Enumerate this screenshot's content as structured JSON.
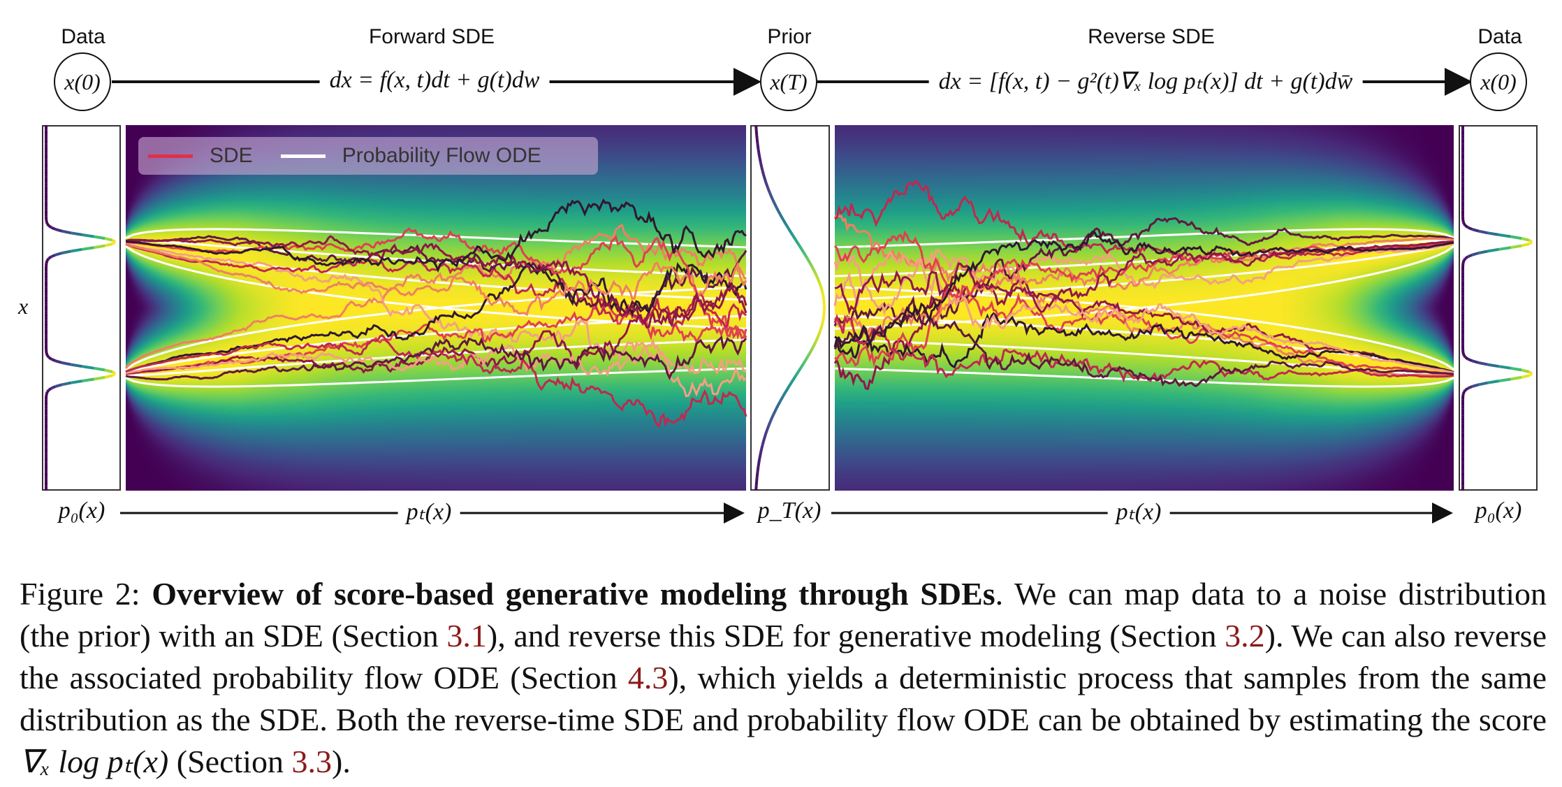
{
  "header": {
    "data_left": "Data",
    "forward_sde": "Forward SDE",
    "prior": "Prior",
    "reverse_sde": "Reverse SDE",
    "data_right": "Data"
  },
  "nodes": {
    "x0_left": "x(0)",
    "xT": "x(T)",
    "x0_right": "x(0)"
  },
  "equations": {
    "forward": "dx = f(x, t)dt + g(t)dw",
    "reverse": "dx = [f(x, t) − g²(t)∇ₓ log pₜ(x)] dt + g(t)dw̄"
  },
  "axis_label": "x",
  "bottom_labels": {
    "p0_left": "p₀(x)",
    "pt_forward": "pₜ(x)",
    "pT": "p_T(x)",
    "pt_reverse": "pₜ(x)",
    "p0_right": "p₀(x)"
  },
  "legend": {
    "sde": "SDE",
    "ode": "Probability Flow ODE",
    "sde_color": "#e0304a",
    "ode_color": "#ffffff"
  },
  "colors": {
    "colormap": "viridis",
    "trajectories": [
      "#f08060",
      "#f4a080",
      "#e04050",
      "#c02850",
      "#901848",
      "#601840",
      "#301830"
    ],
    "link": "#8b1a1a"
  },
  "caption": {
    "figure_label": "Figure 2:",
    "title": "Overview of score-based generative modeling through SDEs",
    "t1": ". We can map data to a noise distribution (the prior) with an SDE (Section ",
    "r1": "3.1",
    "t2": "), and reverse this SDE for generative modeling (Section ",
    "r2": "3.2",
    "t3": "). We can also reverse the associated probability flow ODE (Section ",
    "r3": "4.3",
    "t4": "), which yields a deterministic process that samples from the same distribution as the SDE. Both the reverse-time SDE and probability flow ODE can be obtained by estimating the score ",
    "score": "∇ₓ log pₜ(x)",
    "t5": " (Section ",
    "r4": "3.3",
    "t6": ")."
  }
}
